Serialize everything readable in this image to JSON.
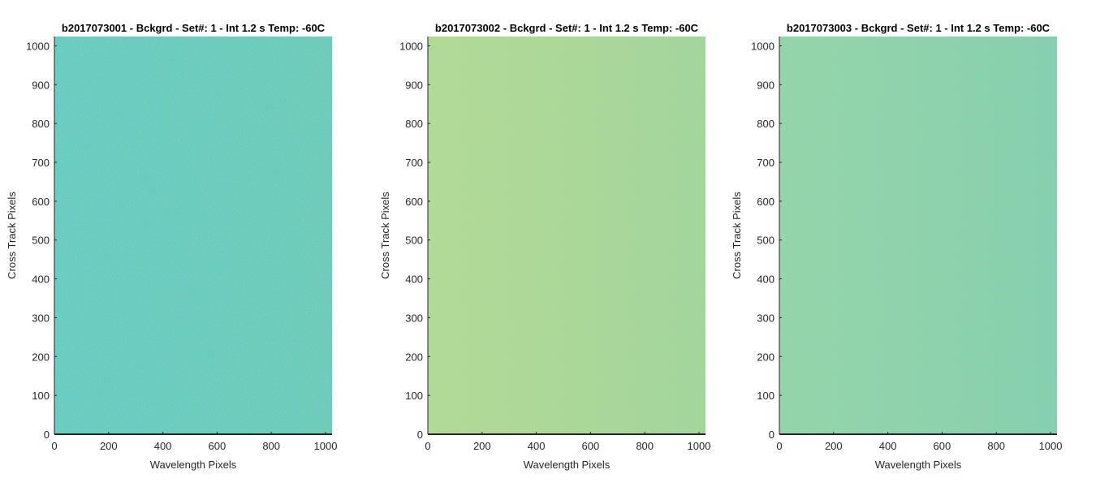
{
  "figure": {
    "background": "#ffffff"
  },
  "chart_data": [
    {
      "type": "heatmap",
      "title": "b2017073001 - Bckgrd - Set#: 1 - Int 1.2 s Temp: -60C",
      "xlabel": "Wavelength Pixels",
      "ylabel": "Cross Track Pixels",
      "xlim": [
        0,
        1024
      ],
      "ylim": [
        0,
        1024
      ],
      "xticks": [
        0,
        200,
        400,
        600,
        800,
        1000
      ],
      "yticks": [
        0,
        100,
        200,
        300,
        400,
        500,
        600,
        700,
        800,
        900,
        1000
      ],
      "colormap": "parula",
      "base_color": "#2eaca1",
      "noise_colors": [
        "#48b58f",
        "#6abd76",
        "#1fa3b0",
        "#3ab397"
      ],
      "grid": false
    },
    {
      "type": "heatmap",
      "title": "b2017073002 - Bckgrd - Set#: 1 - Int 1.2 s Temp: -60C",
      "xlabel": "Wavelength Pixels",
      "ylabel": "Cross Track Pixels",
      "xlim": [
        0,
        1024
      ],
      "ylim": [
        0,
        1024
      ],
      "xticks": [
        0,
        200,
        400,
        600,
        800,
        1000
      ],
      "yticks": [
        0,
        100,
        200,
        300,
        400,
        500,
        600,
        700,
        800,
        900,
        1000
      ],
      "colormap": "parula",
      "base_color": "#5cbb7f",
      "noise_colors": [
        "#86c266",
        "#3fb392",
        "#a4c558",
        "#2ea99f"
      ],
      "grid": false
    },
    {
      "type": "heatmap",
      "title": "b2017073003 - Bckgrd - Set#: 1 - Int 1.2 s Temp: -60C",
      "xlabel": "Wavelength Pixels",
      "ylabel": "Cross Track Pixels",
      "xlim": [
        0,
        1024
      ],
      "ylim": [
        0,
        1024
      ],
      "xticks": [
        0,
        200,
        400,
        600,
        800,
        1000
      ],
      "yticks": [
        0,
        100,
        200,
        300,
        400,
        500,
        600,
        700,
        800,
        900,
        1000
      ],
      "colormap": "parula",
      "base_color": "#3bb196",
      "noise_colors": [
        "#5cba82",
        "#24a5ab",
        "#7bbf6c",
        "#30ad9d"
      ],
      "grid": false
    }
  ]
}
